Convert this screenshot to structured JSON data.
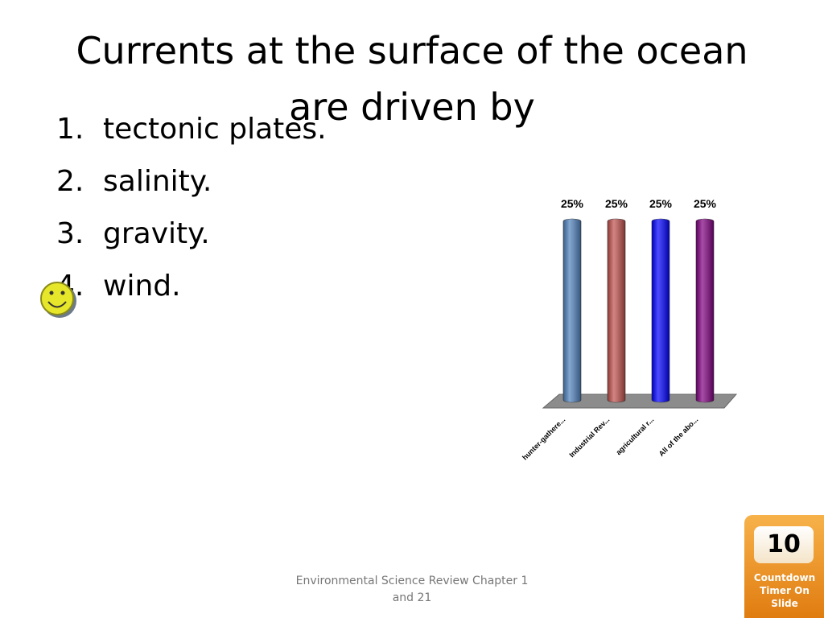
{
  "title": "Currents at the surface of the ocean are driven by",
  "options": [
    {
      "number": "1.",
      "text": "tectonic plates."
    },
    {
      "number": "2.",
      "text": "salinity."
    },
    {
      "number": "3.",
      "text": "gravity."
    },
    {
      "number": "4.",
      "text": "wind."
    }
  ],
  "chart_data": {
    "type": "bar",
    "categories": [
      "hunter-gathere...",
      "Industrial Rev...",
      "agricultural r...",
      "All of the abo..."
    ],
    "values": [
      25,
      25,
      25,
      25
    ],
    "value_labels": [
      "25%",
      "25%",
      "25%",
      "25%"
    ],
    "colors": [
      "#4f81bd",
      "#c0504d",
      "#0000ff",
      "#800080"
    ]
  },
  "footer": "Environmental Science Review Chapter 1 and 21",
  "timer": {
    "count": 10,
    "label": "Countdown Timer On Slide"
  }
}
